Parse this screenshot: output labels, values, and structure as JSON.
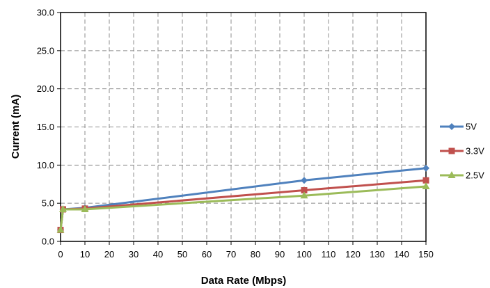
{
  "chart_data": {
    "type": "line",
    "title": "",
    "xlabel": "Data Rate (Mbps)",
    "ylabel": "Current (mA)",
    "xlim": [
      0,
      150
    ],
    "ylim": [
      0,
      30
    ],
    "x_ticks": [
      0,
      10,
      20,
      30,
      40,
      50,
      60,
      70,
      80,
      90,
      100,
      110,
      120,
      130,
      140,
      150
    ],
    "y_ticks": [
      "0.0",
      "5.0",
      "10.0",
      "15.0",
      "20.0",
      "25.0",
      "30.0"
    ],
    "grid": true,
    "legend_position": "right",
    "series": [
      {
        "name": "5V",
        "color": "#4F81BD",
        "marker": "diamond",
        "x": [
          0,
          1,
          10,
          100,
          150
        ],
        "y": [
          1.5,
          4.2,
          4.4,
          8.0,
          9.6
        ]
      },
      {
        "name": "3.3V",
        "color": "#C0504D",
        "marker": "square",
        "x": [
          0,
          1,
          10,
          100,
          150
        ],
        "y": [
          1.5,
          4.2,
          4.3,
          6.7,
          8.0
        ]
      },
      {
        "name": "2.5V",
        "color": "#9BBB59",
        "marker": "triangle",
        "x": [
          0,
          1,
          10,
          100,
          150
        ],
        "y": [
          1.5,
          4.2,
          4.2,
          6.0,
          7.2
        ]
      }
    ]
  }
}
